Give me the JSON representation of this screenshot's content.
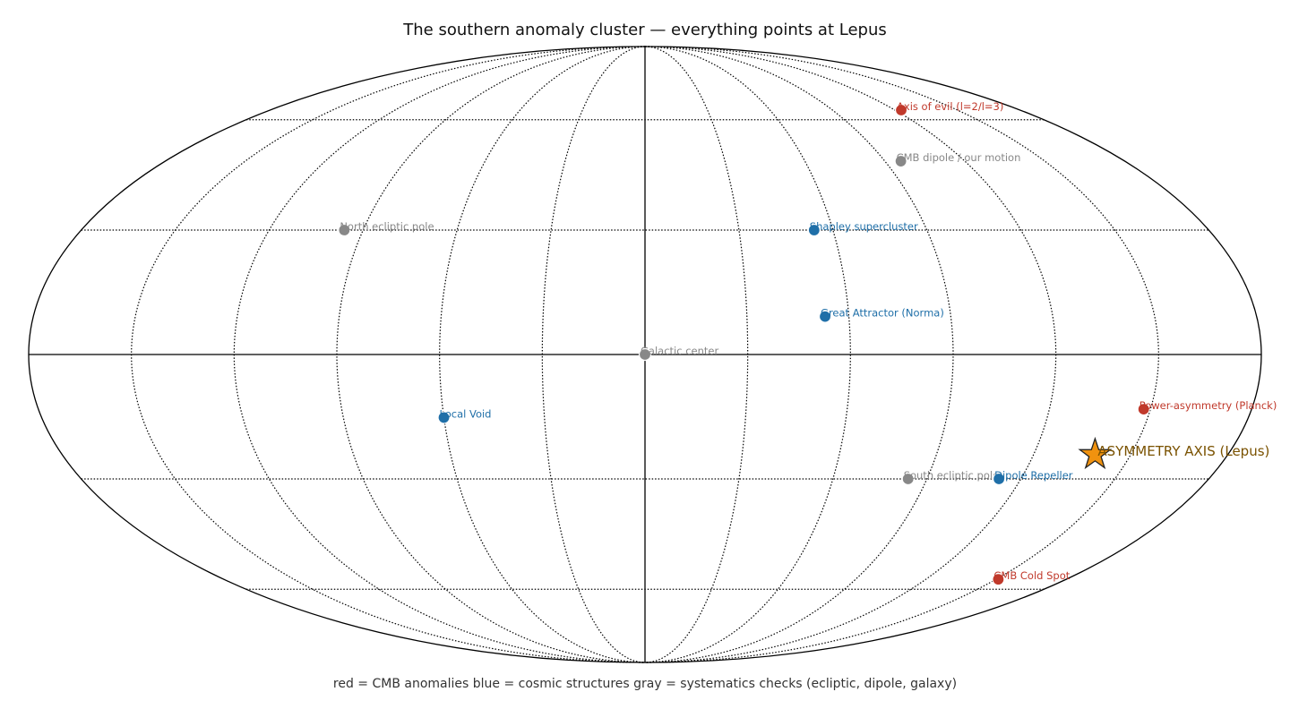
{
  "chart_data": {
    "type": "scatter",
    "projection": "mollweide",
    "title": "The southern anomaly cluster — everything points at Lepus",
    "note": "red = CMB anomalies   blue = cosmic structures   gray = systematics checks (ecliptic, dipole, galaxy)",
    "xlim": [
      -180,
      180
    ],
    "ylim": [
      -90,
      90
    ],
    "grid_lon": [
      -150,
      -120,
      -90,
      -60,
      -30,
      30,
      60,
      90,
      120,
      150
    ],
    "grid_lat": [
      -60,
      -30,
      30,
      60
    ],
    "grid": true,
    "points": [
      {
        "label": "Axis of evil (l=2/l=3)",
        "color": "#c0392b",
        "lon": 123,
        "lat": 63
      },
      {
        "label": "CMB dipole / our motion",
        "color": "#888888",
        "lon": 96,
        "lat": 48
      },
      {
        "label": "North ecliptic pole",
        "color": "#888888",
        "lon": -96,
        "lat": 30
      },
      {
        "label": "Shapley supercluster",
        "color": "#1f6fa8",
        "lon": 54,
        "lat": 30
      },
      {
        "label": "Great Attractor (Norma)",
        "color": "#1f6fa8",
        "lon": 53,
        "lat": 9
      },
      {
        "label": "Galactic center",
        "color": "#888888",
        "lon": 0,
        "lat": 0
      },
      {
        "label": "Local Void",
        "color": "#1f6fa8",
        "lon": -60,
        "lat": -15
      },
      {
        "label": "Power-asymmetry (Planck)",
        "color": "#c0392b",
        "lon": 148,
        "lat": -13
      },
      {
        "label": "South ecliptic pole",
        "color": "#888888",
        "lon": 84,
        "lat": -30
      },
      {
        "label": "Dipole Repeller",
        "color": "#1f6fa8",
        "lon": 113,
        "lat": -30
      },
      {
        "label": "CMB Cold Spot",
        "color": "#c0392b",
        "lon": 151,
        "lat": -57
      }
    ],
    "highlight": {
      "label": "ASYMMETRY AXIS (Lepus)",
      "color": "#f0920f",
      "label_color": "#7a5200",
      "lon": 139,
      "lat": -24
    }
  }
}
